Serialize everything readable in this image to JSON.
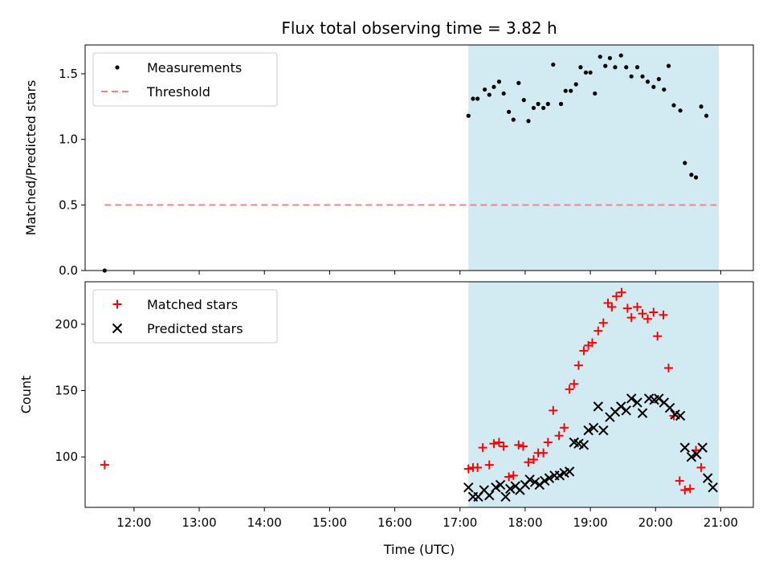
{
  "figure": {
    "title": "Flux total observing time = 3.82 h"
  },
  "chart_data": [
    {
      "type": "scatter",
      "panel": "top",
      "ylabel": "Matched/Predicted stars",
      "xlim": [
        11.25,
        21.5
      ],
      "ylim": [
        0,
        1.72
      ],
      "yticks": [
        0.0,
        0.5,
        1.0,
        1.5
      ],
      "ytick_labels": [
        "0.0",
        "0.5",
        "1.0",
        "1.5"
      ],
      "shaded_region": {
        "x0": 17.13,
        "x1": 20.97,
        "color": "#add8e6"
      },
      "legend_position": "top-left",
      "series": [
        {
          "name": "Measurements",
          "marker": "dot",
          "color": "#000000",
          "x": [
            11.55,
            17.13,
            17.2,
            17.27,
            17.38,
            17.45,
            17.52,
            17.6,
            17.67,
            17.75,
            17.82,
            17.9,
            17.98,
            18.05,
            18.13,
            18.2,
            18.28,
            18.35,
            18.43,
            18.55,
            18.62,
            18.7,
            18.78,
            18.85,
            18.93,
            19.0,
            19.07,
            19.15,
            19.23,
            19.3,
            19.38,
            19.47,
            19.55,
            19.63,
            19.72,
            19.8,
            19.88,
            19.97,
            20.05,
            20.13,
            20.2,
            20.28,
            20.38,
            20.45,
            20.55,
            20.62,
            20.7,
            20.78,
            20.88,
            20.97
          ],
          "y": [
            0.0,
            1.18,
            1.31,
            1.31,
            1.38,
            1.34,
            1.4,
            1.44,
            1.35,
            1.21,
            1.15,
            1.43,
            1.3,
            1.14,
            1.24,
            1.27,
            1.24,
            1.27,
            1.57,
            1.27,
            1.37,
            1.37,
            1.42,
            1.55,
            1.51,
            1.51,
            1.35,
            1.63,
            1.56,
            1.62,
            1.55,
            1.64,
            1.55,
            1.48,
            1.55,
            1.48,
            1.44,
            1.4,
            1.46,
            1.38,
            1.56,
            1.26,
            1.22,
            0.82,
            0.73,
            0.71,
            1.25,
            1.18,
            null,
            null
          ]
        },
        {
          "name": "Threshold",
          "marker": "dashed-line",
          "color": "#ff7f7f",
          "x": [
            11.55,
            20.97
          ],
          "y": [
            0.5,
            0.5
          ]
        }
      ]
    },
    {
      "type": "scatter",
      "panel": "bottom",
      "xlabel": "Time (UTC)",
      "ylabel": "Count",
      "xlim": [
        11.25,
        21.5
      ],
      "ylim": [
        62,
        232
      ],
      "xticks": [
        12,
        13,
        14,
        15,
        16,
        17,
        18,
        19,
        20,
        21
      ],
      "xtick_labels": [
        "12:00",
        "13:00",
        "14:00",
        "15:00",
        "16:00",
        "17:00",
        "18:00",
        "19:00",
        "20:00",
        "21:00"
      ],
      "yticks": [
        100,
        150,
        200
      ],
      "ytick_labels": [
        "100",
        "150",
        "200"
      ],
      "shaded_region": {
        "x0": 17.13,
        "x1": 20.97,
        "color": "#add8e6"
      },
      "legend_position": "top-left",
      "series": [
        {
          "name": "Matched stars",
          "marker": "plus",
          "color": "#ff0000",
          "x": [
            11.55,
            17.13,
            17.2,
            17.27,
            17.35,
            17.45,
            17.52,
            17.6,
            17.67,
            17.75,
            17.82,
            17.9,
            17.97,
            18.05,
            18.13,
            18.2,
            18.28,
            18.35,
            18.43,
            18.52,
            18.6,
            18.68,
            18.75,
            18.82,
            18.9,
            18.97,
            19.03,
            19.12,
            19.2,
            19.27,
            19.33,
            19.4,
            19.48,
            19.57,
            19.63,
            19.72,
            19.8,
            19.88,
            19.97,
            20.03,
            20.12,
            20.2,
            20.28,
            20.37,
            20.45,
            20.53,
            20.62,
            20.7,
            20.77,
            20.88,
            20.97
          ],
          "y": [
            94,
            91,
            92,
            92,
            107,
            94,
            110,
            111,
            108,
            85,
            86,
            109,
            108,
            96,
            98,
            103,
            103,
            111,
            135,
            116,
            122,
            151,
            155,
            169,
            180,
            184,
            186,
            195,
            201,
            216,
            213,
            221,
            224,
            212,
            205,
            213,
            208,
            204,
            209,
            191,
            207,
            167,
            131,
            82,
            75,
            76,
            105,
            92,
            null,
            null,
            null
          ]
        },
        {
          "name": "Predicted stars",
          "marker": "x",
          "color": "#000000",
          "x": [
            17.13,
            17.2,
            17.28,
            17.37,
            17.45,
            17.55,
            17.62,
            17.7,
            17.77,
            17.85,
            17.92,
            18.0,
            18.07,
            18.15,
            18.22,
            18.3,
            18.37,
            18.45,
            18.53,
            18.6,
            18.68,
            18.75,
            18.82,
            18.9,
            18.97,
            19.05,
            19.12,
            19.2,
            19.3,
            19.38,
            19.47,
            19.55,
            19.63,
            19.72,
            19.8,
            19.9,
            19.98,
            20.05,
            20.13,
            20.22,
            20.3,
            20.38,
            20.45,
            20.55,
            20.63,
            20.72,
            20.8,
            20.88,
            20.97
          ],
          "y": [
            77,
            70,
            70,
            75,
            71,
            77,
            79,
            70,
            76,
            78,
            75,
            79,
            83,
            81,
            79,
            82,
            84,
            86,
            86,
            88,
            89,
            111,
            110,
            109,
            120,
            122,
            138,
            120,
            130,
            134,
            138,
            135,
            144,
            141,
            133,
            144,
            143,
            144,
            141,
            137,
            132,
            131,
            107,
            100,
            102,
            107,
            84,
            77,
            null
          ]
        }
      ]
    }
  ]
}
